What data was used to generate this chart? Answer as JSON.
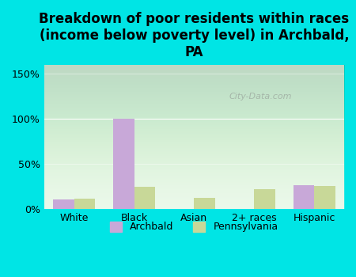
{
  "title": "Breakdown of poor residents within races\n(income below poverty level) in Archbald,\nPA",
  "categories": [
    "White",
    "Black",
    "Asian",
    "2+ races",
    "Hispanic"
  ],
  "archbald_values": [
    11,
    100,
    0,
    0,
    27
  ],
  "pennsylvania_values": [
    12,
    25,
    13,
    22,
    26
  ],
  "archbald_color": "#c8a8d8",
  "pennsylvania_color": "#c8d898",
  "background_outer": "#00e5e5",
  "background_inner": "#e8f8e8",
  "ylim": [
    0,
    160
  ],
  "yticks": [
    0,
    50,
    100,
    150
  ],
  "ytick_labels": [
    "0%",
    "50%",
    "100%",
    "150%"
  ],
  "bar_width": 0.35,
  "title_fontsize": 12,
  "legend_archbald": "Archbald",
  "legend_pennsylvania": "Pennsylvania",
  "watermark": "City-Data.com"
}
